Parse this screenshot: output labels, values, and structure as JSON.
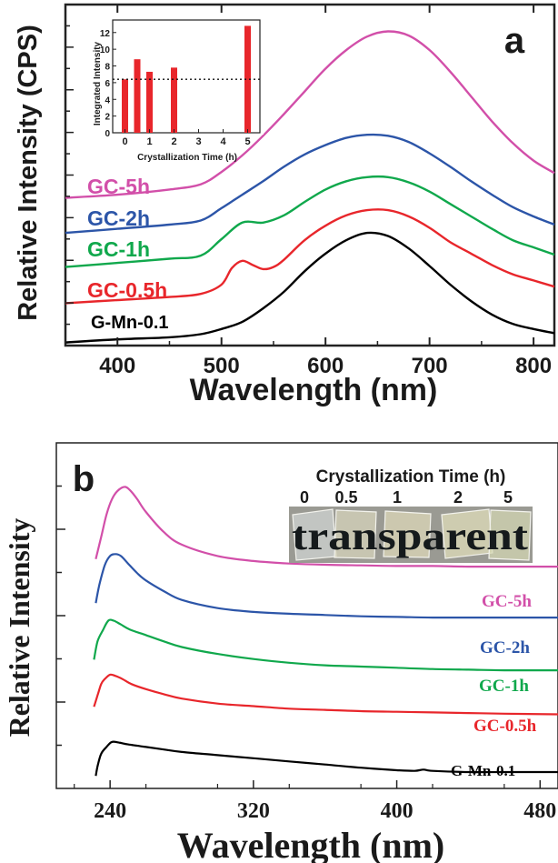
{
  "chart_data": [
    {
      "panel": "a",
      "type": "line",
      "xlabel": "Wavelength (nm)",
      "ylabel": "Relative Intensity (CPS)",
      "xlim": [
        350,
        820
      ],
      "xticks": [
        400,
        500,
        600,
        700,
        800
      ],
      "series": [
        {
          "name": "G-Mn-0.1",
          "color": "#000000",
          "x": [
            350,
            400,
            450,
            480,
            500,
            520,
            540,
            560,
            580,
            600,
            620,
            640,
            660,
            680,
            700,
            720,
            740,
            760,
            780,
            800,
            820
          ],
          "y": [
            0.3,
            0.6,
            0.8,
            1.1,
            1.6,
            2.3,
            3.6,
            5.2,
            7.2,
            8.9,
            10.2,
            10.9,
            10.6,
            9.4,
            7.7,
            5.9,
            4.3,
            3.0,
            2.1,
            1.6,
            1.2
          ]
        },
        {
          "name": "GC-0.5h",
          "color": "#e8262b",
          "x": [
            350,
            400,
            450,
            480,
            500,
            510,
            520,
            530,
            540,
            550,
            560,
            580,
            600,
            620,
            640,
            660,
            680,
            700,
            720,
            740,
            760,
            780,
            800,
            820
          ],
          "y": [
            4.1,
            4.4,
            4.7,
            5.0,
            5.9,
            7.5,
            8.2,
            7.8,
            7.4,
            7.6,
            8.3,
            10.2,
            11.6,
            12.6,
            13.1,
            13.1,
            12.5,
            11.4,
            10.0,
            8.9,
            7.8,
            6.9,
            6.3,
            5.7
          ]
        },
        {
          "name": "GC-1h",
          "color": "#10a84c",
          "x": [
            350,
            400,
            450,
            480,
            500,
            520,
            540,
            560,
            580,
            600,
            620,
            640,
            660,
            680,
            700,
            720,
            740,
            760,
            780,
            800,
            820
          ],
          "y": [
            7.6,
            8.0,
            8.4,
            8.7,
            10.3,
            11.9,
            11.9,
            12.6,
            13.9,
            15.1,
            15.9,
            16.3,
            16.3,
            15.8,
            14.9,
            13.7,
            12.5,
            11.3,
            10.2,
            9.5,
            8.8
          ]
        },
        {
          "name": "GC-2h",
          "color": "#2c55a8",
          "x": [
            350,
            400,
            450,
            480,
            500,
            520,
            540,
            560,
            580,
            600,
            620,
            640,
            660,
            680,
            700,
            720,
            740,
            760,
            780,
            800,
            820
          ],
          "y": [
            10.9,
            11.3,
            11.7,
            12.1,
            13.3,
            14.6,
            15.9,
            17.3,
            18.5,
            19.4,
            20.1,
            20.4,
            20.3,
            19.7,
            18.6,
            17.3,
            15.9,
            14.6,
            13.4,
            12.5,
            11.7
          ]
        },
        {
          "name": "GC-5h",
          "color": "#d24fa9",
          "x": [
            350,
            400,
            450,
            480,
            500,
            520,
            540,
            560,
            580,
            600,
            620,
            640,
            660,
            680,
            700,
            720,
            740,
            760,
            780,
            800,
            820
          ],
          "y": [
            14.3,
            14.6,
            15.1,
            15.6,
            16.8,
            18.4,
            20.3,
            22.4,
            24.6,
            26.8,
            28.6,
            29.9,
            30.4,
            30.0,
            28.6,
            26.5,
            24.1,
            21.7,
            19.6,
            17.9,
            16.7
          ]
        }
      ],
      "inset": {
        "type": "bar",
        "xlabel": "Crystallization Time (h)",
        "ylabel": "Integrated Intensity",
        "xlim": [
          -0.5,
          5.5
        ],
        "ylim": [
          0,
          13.5
        ],
        "xticks": [
          0,
          1,
          2,
          3,
          4,
          5
        ],
        "yticks": [
          0,
          2,
          4,
          6,
          8,
          10,
          12
        ],
        "x": [
          0,
          0.5,
          1,
          2,
          5
        ],
        "values": [
          6.4,
          8.8,
          7.3,
          7.8,
          12.8
        ],
        "reference_line": 6.4,
        "bar_color": "#e8262b"
      }
    },
    {
      "panel": "b",
      "type": "line",
      "xlabel": "Wavelength (nm)",
      "ylabel": "Relative Intensity",
      "xlim": [
        210,
        490
      ],
      "xticks": [
        240,
        320,
        400,
        480
      ],
      "series": [
        {
          "name": "G-Mn-0.1",
          "color": "#000000",
          "x": [
            232,
            233,
            235,
            238,
            241,
            245,
            250,
            260,
            270,
            280,
            300,
            320,
            340,
            360,
            380,
            400,
            410,
            415,
            420,
            440,
            460,
            490
          ],
          "y": [
            0,
            1.5,
            3.5,
            4.6,
            5.4,
            5.3,
            5.0,
            4.6,
            4.2,
            3.8,
            3.3,
            2.8,
            2.3,
            1.8,
            1.3,
            0.9,
            0.8,
            1.0,
            0.8,
            0.6,
            0.6,
            0.6
          ]
        },
        {
          "name": "GC-0.5h",
          "color": "#e8262b",
          "x": [
            231,
            233,
            235,
            237,
            240,
            243,
            247,
            252,
            260,
            270,
            280,
            300,
            320,
            340,
            360,
            380,
            400,
            420,
            440,
            460,
            490
          ],
          "y": [
            11.0,
            12.8,
            14.6,
            15.4,
            16.1,
            15.9,
            15.4,
            14.6,
            13.8,
            13.0,
            12.3,
            11.5,
            11.1,
            10.7,
            10.5,
            10.3,
            10.2,
            10.1,
            10.0,
            9.9,
            9.8
          ]
        },
        {
          "name": "GC-1h",
          "color": "#10a84c",
          "x": [
            231,
            233,
            236,
            239,
            242,
            246,
            251,
            260,
            270,
            280,
            300,
            320,
            340,
            360,
            380,
            400,
            420,
            440,
            460,
            490
          ],
          "y": [
            18.5,
            21.4,
            23.2,
            24.7,
            24.7,
            24.1,
            23.3,
            22.4,
            21.4,
            20.5,
            19.4,
            18.6,
            18.0,
            17.6,
            17.4,
            17.2,
            17.0,
            16.9,
            16.8,
            16.8
          ]
        },
        {
          "name": "GC-2h",
          "color": "#2c55a8",
          "x": [
            232,
            234,
            237,
            240,
            243,
            246,
            250,
            255,
            260,
            270,
            280,
            300,
            320,
            340,
            360,
            380,
            400,
            420,
            440,
            460,
            490
          ],
          "y": [
            27.5,
            30.4,
            33.5,
            35.0,
            35.3,
            35.0,
            33.8,
            32.3,
            31.1,
            29.4,
            28.0,
            26.7,
            26.1,
            25.8,
            25.6,
            25.4,
            25.3,
            25.2,
            25.2,
            25.2,
            25.2
          ]
        },
        {
          "name": "GC-5h",
          "color": "#d24fa9",
          "x": [
            232,
            235,
            238,
            241,
            244,
            248,
            251,
            255,
            260,
            270,
            280,
            300,
            320,
            340,
            360,
            380,
            400,
            420,
            440,
            460,
            490
          ],
          "y": [
            34.5,
            38.0,
            41.6,
            44.0,
            45.3,
            46.0,
            45.5,
            44.1,
            42.0,
            38.8,
            36.8,
            35.0,
            34.2,
            33.8,
            33.6,
            33.5,
            33.4,
            33.4,
            33.3,
            33.3,
            33.3
          ]
        }
      ],
      "inset_photo": {
        "title": "Crystallization Time (h)",
        "labels": [
          "0",
          "0.5",
          "1",
          "2",
          "5"
        ],
        "word": "transparent"
      }
    }
  ],
  "panels": {
    "a": {
      "letter": "a"
    },
    "b": {
      "letter": "b"
    }
  }
}
